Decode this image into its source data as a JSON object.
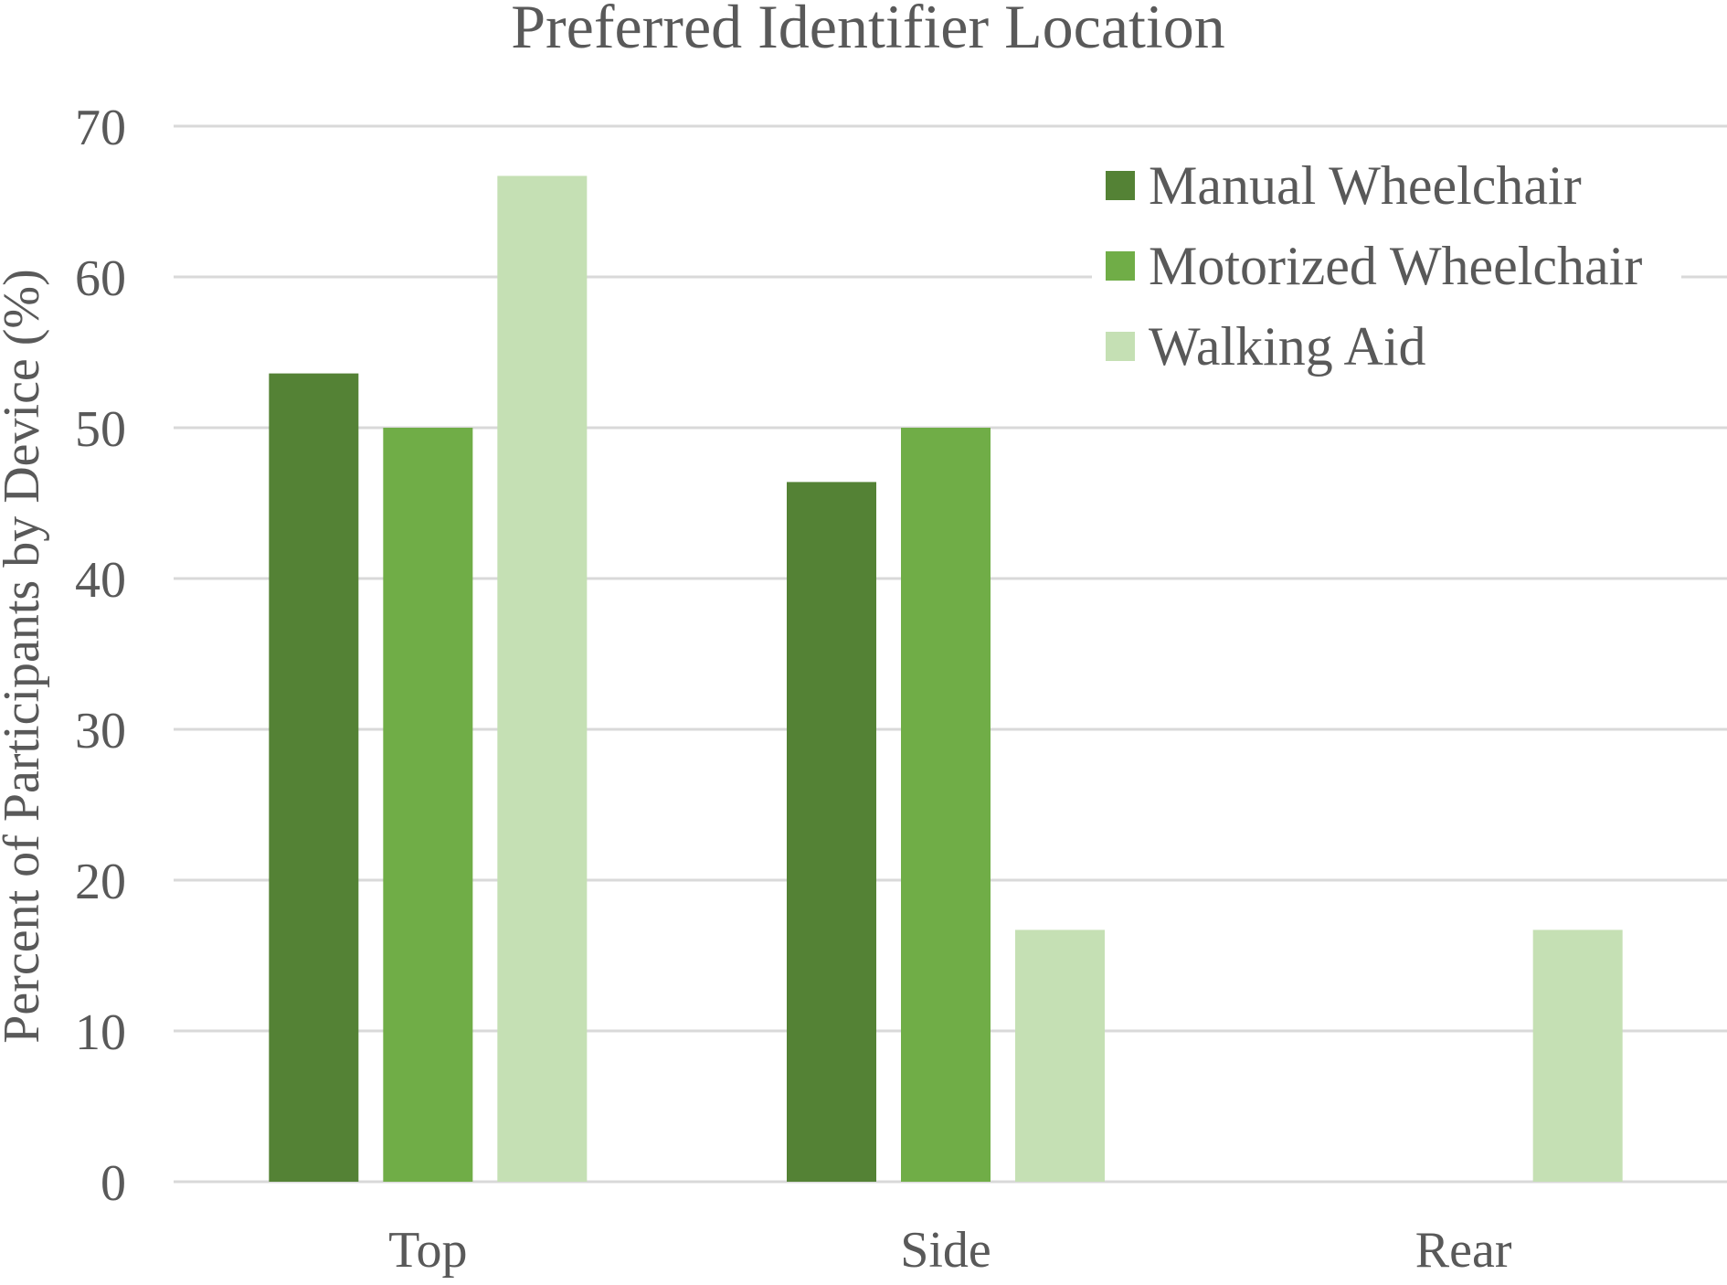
{
  "chart_data": {
    "type": "bar",
    "title": "Preferred Identifier Location",
    "xlabel": "",
    "ylabel": "Percent of Participants by Device (%)",
    "categories": [
      "Top",
      "Side",
      "Rear"
    ],
    "series": [
      {
        "name": "Manual Wheelchair",
        "values": [
          53.6,
          46.4,
          0
        ],
        "color": "#548235"
      },
      {
        "name": "Motorized Wheelchair",
        "values": [
          50,
          50,
          0
        ],
        "color": "#70ad47"
      },
      {
        "name": "Walking Aid",
        "values": [
          66.7,
          16.7,
          16.7
        ],
        "color": "#c5e0b4"
      }
    ],
    "ylim": [
      0,
      70
    ],
    "yticks": [
      "0",
      "10",
      "20",
      "30",
      "40",
      "50",
      "60",
      "70"
    ],
    "grid": true,
    "legend_position": "top-right"
  }
}
